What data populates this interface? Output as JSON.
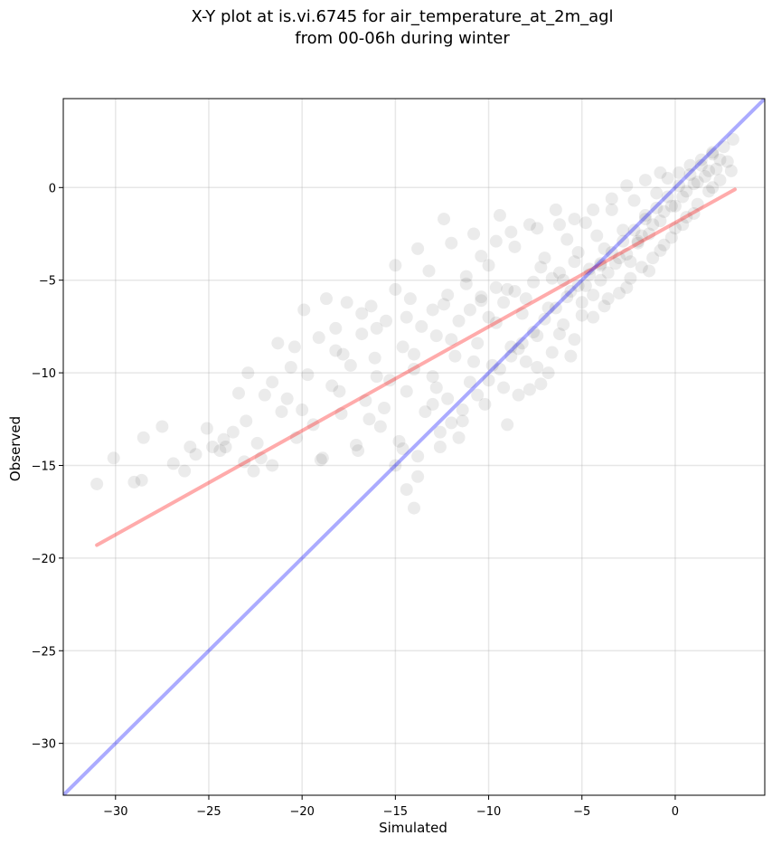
{
  "chart_data": {
    "type": "scatter",
    "title_lines": [
      "X-Y plot at is.vi.6745 for air_temperature_at_2m_agl",
      "from 00-06h during winter"
    ],
    "xlabel": "Simulated",
    "ylabel": "Observed",
    "xlim": [
      -32.8,
      4.8
    ],
    "ylim": [
      -32.8,
      4.8
    ],
    "x_ticks": [
      -30,
      -25,
      -20,
      -15,
      -10,
      -5,
      0
    ],
    "y_ticks": [
      -30,
      -25,
      -20,
      -15,
      -10,
      -5,
      0
    ],
    "x_tick_labels": [
      "−30",
      "−25",
      "−20",
      "−15",
      "−10",
      "−5",
      "0"
    ],
    "y_tick_labels": [
      "−30",
      "−25",
      "−20",
      "−15",
      "−10",
      "−5",
      "0"
    ],
    "grid": true,
    "scatter_color": "#000000",
    "scatter_alpha": 0.08,
    "points": [
      [
        -31.0,
        -16.0
      ],
      [
        -30.1,
        -14.6
      ],
      [
        -29.0,
        -15.9
      ],
      [
        -28.6,
        -15.8
      ],
      [
        -28.5,
        -13.5
      ],
      [
        -27.5,
        -12.9
      ],
      [
        -26.9,
        -14.9
      ],
      [
        -26.3,
        -15.3
      ],
      [
        -25.7,
        -14.4
      ],
      [
        -25.1,
        -13.0
      ],
      [
        -24.8,
        -14.0
      ],
      [
        -24.2,
        -13.6
      ],
      [
        -24.1,
        -14.0
      ],
      [
        -23.7,
        -13.2
      ],
      [
        -23.4,
        -11.1
      ],
      [
        -23.1,
        -14.8
      ],
      [
        -22.9,
        -10.0
      ],
      [
        -22.4,
        -13.8
      ],
      [
        -22.2,
        -14.6
      ],
      [
        -22.0,
        -11.2
      ],
      [
        -21.6,
        -15.0
      ],
      [
        -21.3,
        -8.4
      ],
      [
        -21.1,
        -12.1
      ],
      [
        -20.8,
        -11.4
      ],
      [
        -20.6,
        -9.7
      ],
      [
        -20.3,
        -13.5
      ],
      [
        -19.9,
        -6.6
      ],
      [
        -19.7,
        -10.1
      ],
      [
        -19.4,
        -12.8
      ],
      [
        -19.1,
        -8.1
      ],
      [
        -18.9,
        -14.6
      ],
      [
        -18.7,
        -6.0
      ],
      [
        -18.4,
        -10.7
      ],
      [
        -18.2,
        -8.8
      ],
      [
        -17.9,
        -12.2
      ],
      [
        -17.6,
        -6.2
      ],
      [
        -17.4,
        -9.6
      ],
      [
        -17.1,
        -13.9
      ],
      [
        -16.8,
        -7.9
      ],
      [
        -16.6,
        -11.5
      ],
      [
        -16.3,
        -6.4
      ],
      [
        -16.1,
        -9.2
      ],
      [
        -15.8,
        -12.9
      ],
      [
        -15.5,
        -7.2
      ],
      [
        -15.3,
        -10.4
      ],
      [
        -15.0,
        -5.5
      ],
      [
        -14.8,
        -13.7
      ],
      [
        -14.6,
        -8.6
      ],
      [
        -14.4,
        -11.0
      ],
      [
        -14.2,
        -6.0
      ],
      [
        -14.0,
        -9.8
      ],
      [
        -13.8,
        -14.5
      ],
      [
        -13.6,
        -7.5
      ],
      [
        -13.4,
        -12.1
      ],
      [
        -13.2,
        -4.5
      ],
      [
        -13.0,
        -10.2
      ],
      [
        -12.8,
        -8.0
      ],
      [
        -12.6,
        -13.2
      ],
      [
        -12.4,
        -6.3
      ],
      [
        -12.2,
        -11.4
      ],
      [
        -12.0,
        -3.0
      ],
      [
        -11.8,
        -9.1
      ],
      [
        -11.6,
        -7.2
      ],
      [
        -11.4,
        -12.6
      ],
      [
        -11.2,
        -5.2
      ],
      [
        -11.0,
        -10.5
      ],
      [
        -10.8,
        -2.5
      ],
      [
        -10.6,
        -8.4
      ],
      [
        -10.4,
        -6.1
      ],
      [
        -10.2,
        -11.7
      ],
      [
        -10.0,
        -4.2
      ],
      [
        -9.8,
        -9.6
      ],
      [
        -9.6,
        -7.3
      ],
      [
        -9.4,
        -1.5
      ],
      [
        -9.2,
        -10.8
      ],
      [
        -9.0,
        -5.5
      ],
      [
        -8.8,
        -8.6
      ],
      [
        -8.6,
        -3.2
      ],
      [
        -8.4,
        -11.2
      ],
      [
        -8.2,
        -6.8
      ],
      [
        -8.0,
        -9.4
      ],
      [
        -7.8,
        -2.0
      ],
      [
        -7.6,
        -5.1
      ],
      [
        -7.4,
        -8.0
      ],
      [
        -7.2,
        -10.6
      ],
      [
        -7.0,
        -3.8
      ],
      [
        -6.8,
        -6.5
      ],
      [
        -6.6,
        -8.9
      ],
      [
        -6.4,
        -1.2
      ],
      [
        -6.2,
        -4.6
      ],
      [
        -6.0,
        -7.4
      ],
      [
        -5.8,
        -2.8
      ],
      [
        -5.6,
        -5.6
      ],
      [
        -5.4,
        -8.2
      ],
      [
        -5.2,
        -3.5
      ],
      [
        -5.0,
        -6.2
      ],
      [
        -4.8,
        -1.9
      ],
      [
        -4.6,
        -4.4
      ],
      [
        -4.4,
        -7.0
      ],
      [
        -4.2,
        -2.6
      ],
      [
        -4.0,
        -5.0
      ],
      [
        -3.8,
        -3.3
      ],
      [
        -3.6,
        -6.0
      ],
      [
        -3.4,
        -1.2
      ],
      [
        -3.2,
        -4.1
      ],
      [
        -3.0,
        -5.7
      ],
      [
        -2.8,
        -2.3
      ],
      [
        -2.6,
        -3.6
      ],
      [
        -2.4,
        -4.9
      ],
      [
        -2.2,
        -0.7
      ],
      [
        -2.0,
        -2.9
      ],
      [
        -1.8,
        -4.3
      ],
      [
        -1.6,
        -1.5
      ],
      [
        -1.4,
        -2.5
      ],
      [
        -1.2,
        -3.8
      ],
      [
        -1.0,
        -0.3
      ],
      [
        -0.8,
        -1.8
      ],
      [
        -0.6,
        -3.1
      ],
      [
        -0.4,
        0.5
      ],
      [
        -0.2,
        -1.0
      ],
      [
        0.0,
        -2.2
      ],
      [
        0.2,
        0.8
      ],
      [
        0.4,
        -0.5
      ],
      [
        0.6,
        -1.6
      ],
      [
        0.8,
        1.2
      ],
      [
        1.0,
        0.2
      ],
      [
        1.2,
        -0.9
      ],
      [
        1.4,
        1.5
      ],
      [
        1.6,
        0.6
      ],
      [
        1.8,
        -0.2
      ],
      [
        2.0,
        1.9
      ],
      [
        2.2,
        1.0
      ],
      [
        2.4,
        0.4
      ],
      [
        2.6,
        2.2
      ],
      [
        2.8,
        1.4
      ],
      [
        3.0,
        0.9
      ],
      [
        3.1,
        2.6
      ],
      [
        -12.6,
        -14.0
      ],
      [
        -13.8,
        -15.6
      ],
      [
        -14.4,
        -16.3
      ],
      [
        -14.0,
        -17.3
      ],
      [
        -15.0,
        -15.0
      ],
      [
        -14.6,
        -14.1
      ],
      [
        -12.0,
        -12.7
      ],
      [
        -11.4,
        -12.0
      ],
      [
        -10.6,
        -11.2
      ],
      [
        -10.0,
        -10.4
      ],
      [
        -9.4,
        -9.8
      ],
      [
        -8.8,
        -9.1
      ],
      [
        -8.2,
        -8.4
      ],
      [
        -7.6,
        -7.8
      ],
      [
        -7.0,
        -7.1
      ],
      [
        -6.4,
        -6.5
      ],
      [
        -5.8,
        -5.9
      ],
      [
        -5.2,
        -5.3
      ],
      [
        -4.6,
        -4.7
      ],
      [
        -4.0,
        -4.1
      ],
      [
        -3.4,
        -3.5
      ],
      [
        -2.8,
        -2.9
      ],
      [
        -2.2,
        -2.3
      ],
      [
        -1.6,
        -1.7
      ],
      [
        -1.0,
        -1.1
      ],
      [
        -0.4,
        -0.5
      ],
      [
        0.2,
        0.1
      ],
      [
        0.8,
        0.7
      ],
      [
        1.4,
        1.2
      ],
      [
        2.0,
        1.8
      ],
      [
        -20.0,
        -12.0
      ],
      [
        -18.0,
        -11.0
      ],
      [
        -16.0,
        -10.2
      ],
      [
        -14.0,
        -9.0
      ],
      [
        -12.0,
        -8.2
      ],
      [
        -10.0,
        -7.0
      ],
      [
        -8.0,
        -6.0
      ],
      [
        -6.0,
        -5.0
      ],
      [
        -4.0,
        -4.2
      ],
      [
        -2.0,
        -3.0
      ],
      [
        0.0,
        -1.0
      ],
      [
        2.0,
        0.0
      ],
      [
        -9.6,
        -5.4
      ],
      [
        -8.6,
        -5.6
      ],
      [
        -9.2,
        -6.2
      ],
      [
        -10.4,
        -5.9
      ],
      [
        -11.0,
        -6.6
      ],
      [
        -7.2,
        -4.3
      ],
      [
        -6.6,
        -4.9
      ],
      [
        -5.4,
        -4.0
      ],
      [
        -4.8,
        -5.3
      ],
      [
        -3.6,
        -4.6
      ],
      [
        -3.0,
        -3.8
      ],
      [
        -2.4,
        -4.0
      ],
      [
        -1.8,
        -2.6
      ],
      [
        -1.2,
        -2.0
      ],
      [
        -0.6,
        -1.3
      ],
      [
        0.6,
        -0.2
      ],
      [
        1.2,
        0.3
      ],
      [
        1.8,
        0.9
      ],
      [
        2.4,
        1.5
      ],
      [
        -22.6,
        -15.3
      ],
      [
        -17.0,
        -14.2
      ],
      [
        -19.0,
        -14.7
      ],
      [
        -13.0,
        -11.7
      ],
      [
        -11.6,
        -13.5
      ],
      [
        -9.0,
        -12.8
      ],
      [
        -7.8,
        -10.9
      ],
      [
        -6.8,
        -10.0
      ],
      [
        -5.6,
        -9.1
      ],
      [
        -16.4,
        -12.5
      ],
      [
        -15.6,
        -11.9
      ],
      [
        -12.8,
        -10.8
      ],
      [
        -10.8,
        -9.4
      ],
      [
        -8.4,
        -8.7
      ],
      [
        -7.4,
        -9.7
      ],
      [
        -6.2,
        -7.9
      ],
      [
        -5.0,
        -6.9
      ],
      [
        -4.4,
        -5.8
      ],
      [
        -3.8,
        -6.4
      ],
      [
        -2.6,
        -5.4
      ],
      [
        -1.4,
        -4.5
      ],
      [
        -0.8,
        -3.4
      ],
      [
        -0.2,
        -2.7
      ],
      [
        0.4,
        -2.0
      ],
      [
        1.0,
        -1.4
      ],
      [
        -17.8,
        -9.0
      ],
      [
        -16.0,
        -7.6
      ],
      [
        -14.4,
        -7.0
      ],
      [
        -13.0,
        -6.6
      ],
      [
        -12.2,
        -5.8
      ],
      [
        -11.2,
        -4.8
      ],
      [
        -10.4,
        -3.7
      ],
      [
        -9.6,
        -2.9
      ],
      [
        -8.8,
        -2.4
      ],
      [
        -7.4,
        -2.2
      ],
      [
        -6.2,
        -2.0
      ],
      [
        -5.4,
        -1.7
      ],
      [
        -4.4,
        -1.2
      ],
      [
        -3.4,
        -0.6
      ],
      [
        -2.6,
        0.1
      ],
      [
        -1.6,
        0.4
      ],
      [
        -0.8,
        0.8
      ],
      [
        -12.4,
        -1.7
      ],
      [
        -13.8,
        -3.3
      ],
      [
        -15.0,
        -4.2
      ],
      [
        -16.8,
        -6.8
      ],
      [
        -18.2,
        -7.6
      ],
      [
        -20.4,
        -8.6
      ],
      [
        -21.6,
        -10.5
      ],
      [
        -23.0,
        -12.6
      ],
      [
        -24.4,
        -14.2
      ],
      [
        -26.0,
        -14.0
      ]
    ],
    "point_radius": 7,
    "series": [
      {
        "name": "",
        "type": "line",
        "color": "#ff0000",
        "alpha": 0.33,
        "x": [
          -31.0,
          3.2
        ],
        "y": [
          -19.3,
          -0.1
        ]
      },
      {
        "name": "",
        "type": "line",
        "color": "#0000ff",
        "alpha": 0.33,
        "x": [
          -32.8,
          4.8
        ],
        "y": [
          -32.8,
          4.8
        ]
      }
    ]
  }
}
